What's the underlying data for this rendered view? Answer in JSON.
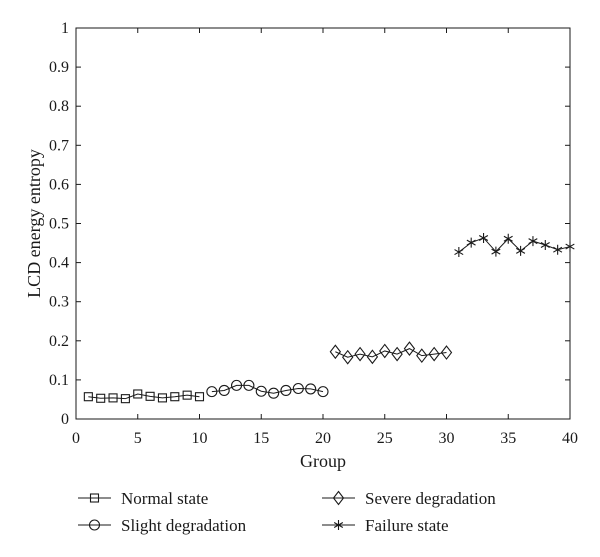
{
  "chart_data": {
    "type": "line",
    "xlabel": "Group",
    "ylabel": "LCD energy entropy",
    "xlim": [
      0,
      40
    ],
    "ylim": [
      0,
      1
    ],
    "xticks": [
      0,
      5,
      10,
      15,
      20,
      25,
      30,
      35,
      40
    ],
    "yticks": [
      0,
      0.1,
      0.2,
      0.3,
      0.4,
      0.5,
      0.6,
      0.7,
      0.8,
      0.9,
      1
    ],
    "grid": false,
    "legend_position": "bottom",
    "series": [
      {
        "name": "Normal state",
        "marker": "square",
        "x": [
          1,
          2,
          3,
          4,
          5,
          6,
          7,
          8,
          9,
          10
        ],
        "y": [
          0.057,
          0.053,
          0.054,
          0.052,
          0.064,
          0.058,
          0.054,
          0.057,
          0.061,
          0.057
        ]
      },
      {
        "name": "Slight degradation",
        "marker": "circle",
        "x": [
          11,
          12,
          13,
          14,
          15,
          16,
          17,
          18,
          19,
          20
        ],
        "y": [
          0.07,
          0.073,
          0.086,
          0.086,
          0.071,
          0.066,
          0.073,
          0.078,
          0.077,
          0.07
        ]
      },
      {
        "name": "Severe degradation",
        "marker": "diamond",
        "x": [
          21,
          22,
          23,
          24,
          25,
          26,
          27,
          28,
          29,
          30
        ],
        "y": [
          0.172,
          0.158,
          0.166,
          0.159,
          0.174,
          0.166,
          0.18,
          0.162,
          0.166,
          0.17
        ]
      },
      {
        "name": "Failure state",
        "marker": "asterisk",
        "x": [
          31,
          32,
          33,
          34,
          35,
          36,
          37,
          38,
          39,
          40
        ],
        "y": [
          0.427,
          0.451,
          0.463,
          0.428,
          0.461,
          0.43,
          0.455,
          0.445,
          0.433,
          0.441
        ]
      }
    ]
  }
}
